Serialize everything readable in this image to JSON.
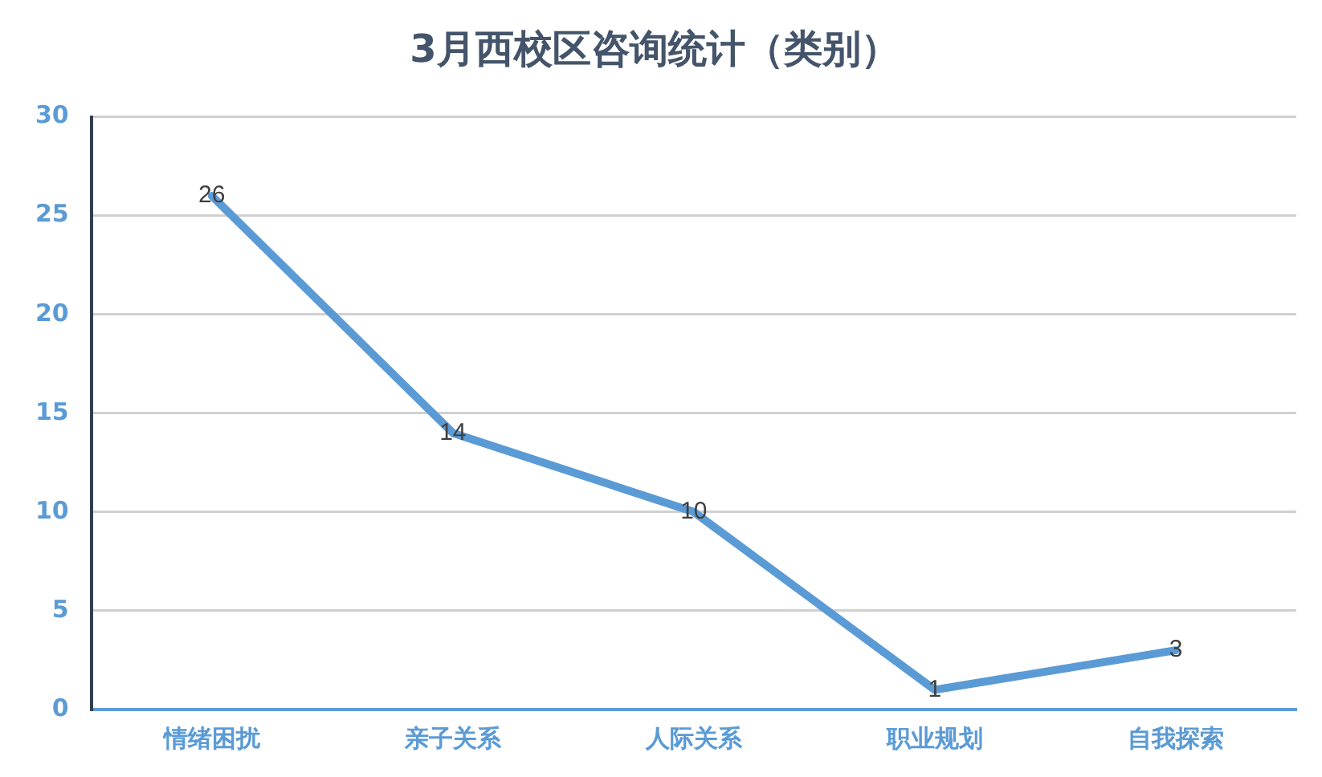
{
  "chart_data": {
    "type": "line",
    "title": "3月西校区咨询统计（类别）",
    "categories": [
      "情绪困扰",
      "亲子关系",
      "人际关系",
      "职业规划",
      "自我探索"
    ],
    "series": [
      {
        "color": "#5b9bd5",
        "values": [
          26,
          14,
          10,
          1,
          3
        ]
      }
    ],
    "ylim": [
      0,
      30
    ],
    "yticks": [
      0,
      5,
      10,
      15,
      20,
      25,
      30
    ],
    "grid": "y",
    "legend": false,
    "marker": "none",
    "data_labels": true
  }
}
